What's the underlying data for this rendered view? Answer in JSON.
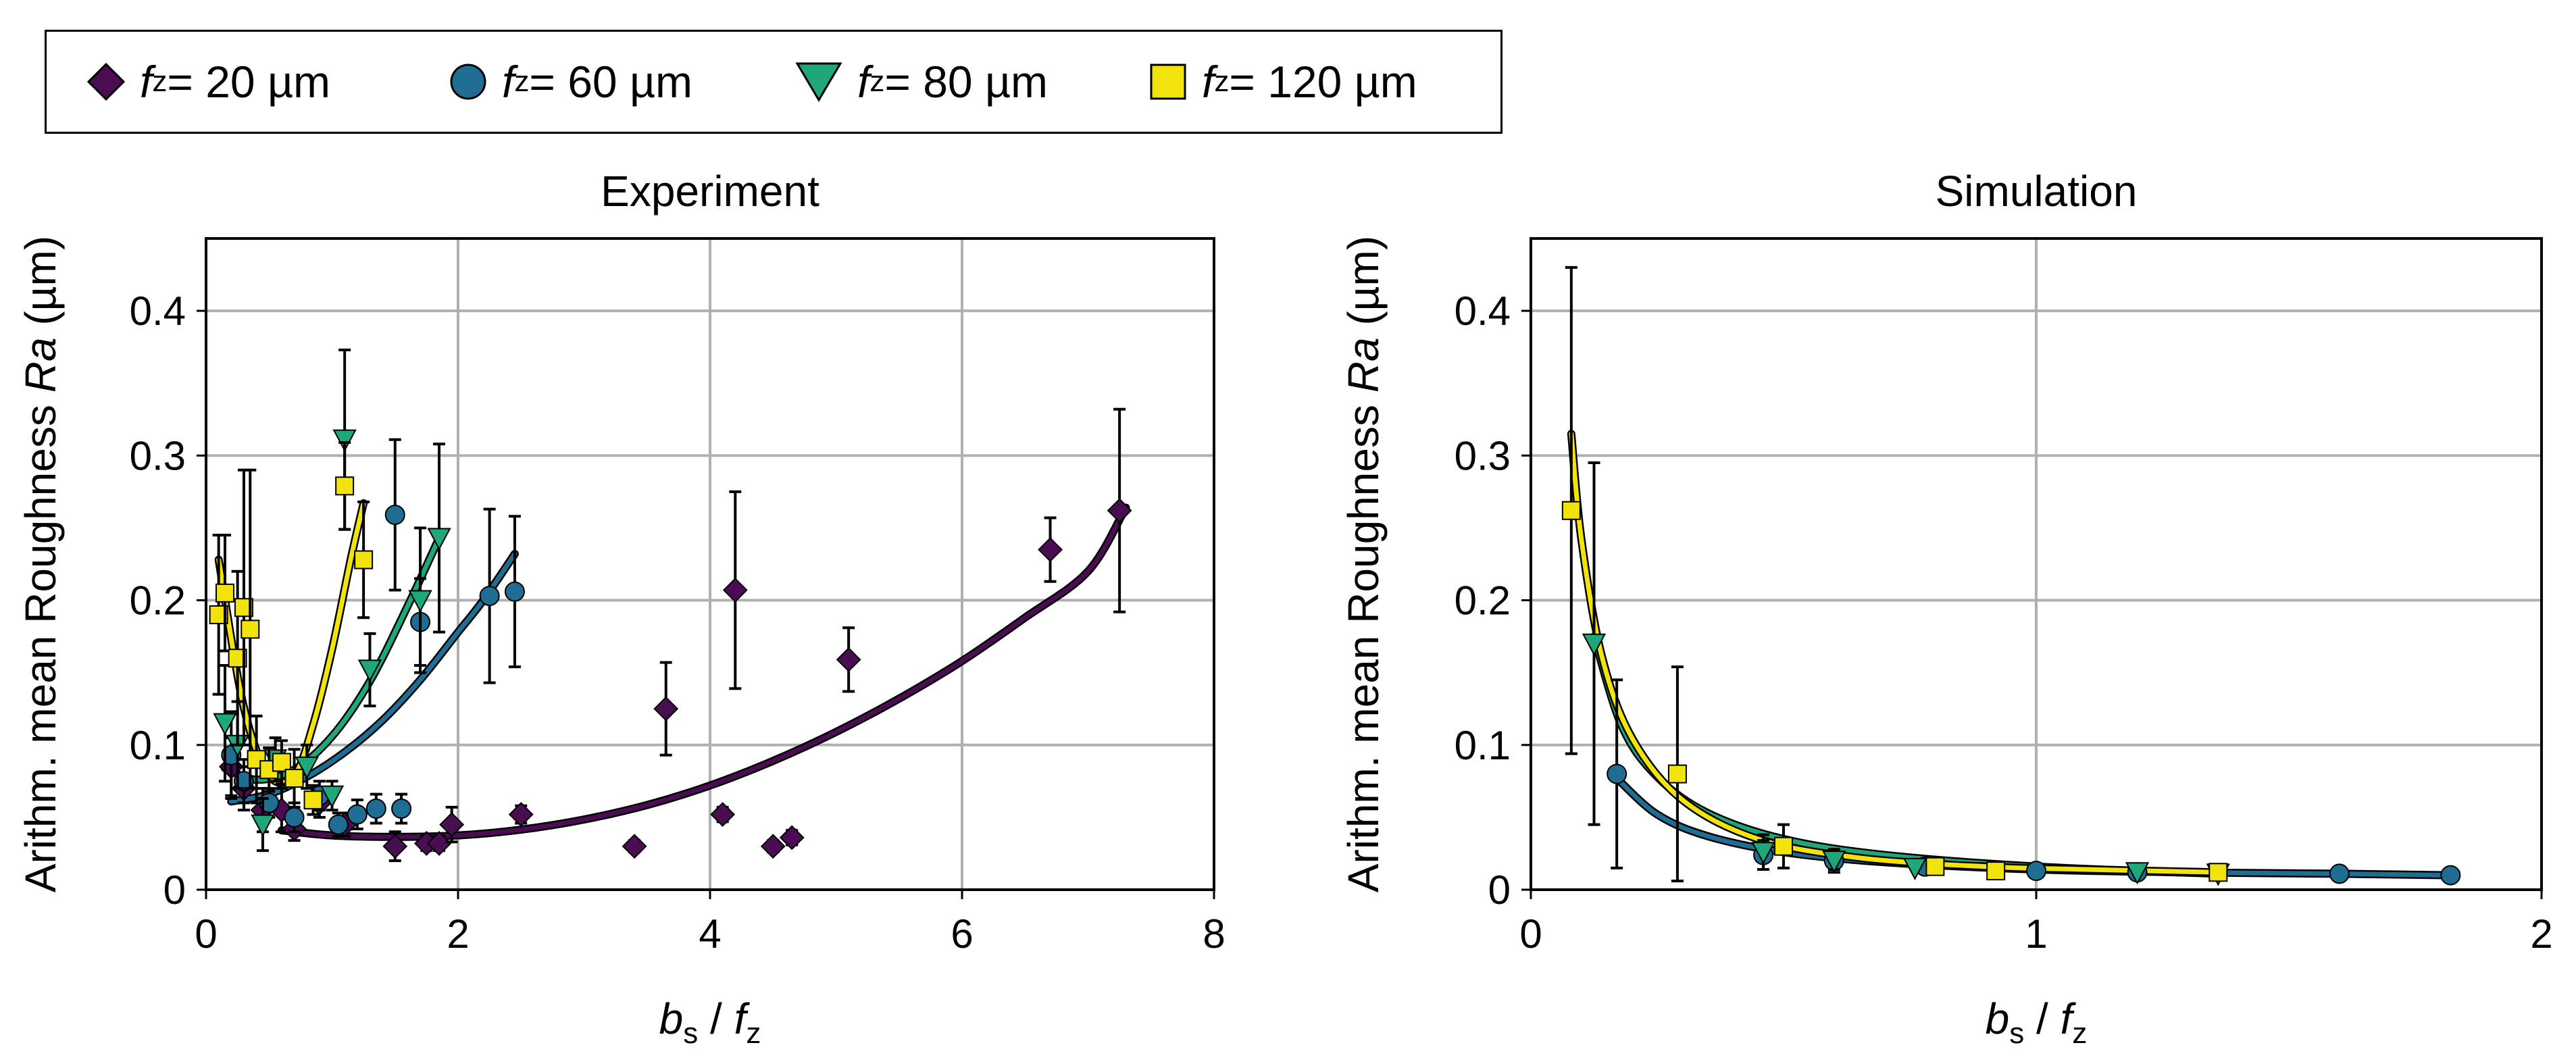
{
  "legend": {
    "items": [
      {
        "symbol": "f",
        "sub": "z",
        "text": " = 20 µm",
        "marker": "diamond",
        "color": "#4a0d52"
      },
      {
        "symbol": "f",
        "sub": "z",
        "text": " = 60 µm",
        "marker": "circle",
        "color": "#1f6d92"
      },
      {
        "symbol": "f",
        "sub": "z",
        "text": " = 80 µm",
        "marker": "triangle",
        "color": "#1fa67a"
      },
      {
        "symbol": "f",
        "sub": "z",
        "text": " = 120 µm",
        "marker": "square",
        "color": "#f2e30c"
      }
    ]
  },
  "chart_data": [
    {
      "type": "scatter",
      "title": "Experiment",
      "xlabel": "b_s / f_z",
      "ylabel": "Arithm. mean Roughness Ra (µm)",
      "xlim": [
        0,
        8
      ],
      "ylim": [
        0,
        0.45
      ],
      "xticks": [
        0,
        2,
        4,
        6,
        8
      ],
      "yticks": [
        0,
        0.1,
        0.2,
        0.3,
        0.4
      ],
      "xtick_labels": [
        "0",
        "2",
        "4",
        "6",
        "8"
      ],
      "ytick_labels": [
        "0",
        "0.1",
        "0.2",
        "0.3",
        "0.4"
      ],
      "grid": true,
      "series": [
        {
          "name": "f_z = 20 µm",
          "marker": "diamond",
          "color": "#4a0d52",
          "points": [
            {
              "x": 0.2,
              "y": 0.085,
              "err": 0.02
            },
            {
              "x": 0.3,
              "y": 0.07,
              "err": 0.015
            },
            {
              "x": 0.45,
              "y": 0.055,
              "err": 0.015
            },
            {
              "x": 0.6,
              "y": 0.055,
              "err": 0.015
            },
            {
              "x": 0.7,
              "y": 0.042,
              "err": 0.008
            },
            {
              "x": 0.9,
              "y": 0.06,
              "err": 0.01
            },
            {
              "x": 1.1,
              "y": 0.045,
              "err": 0.008
            },
            {
              "x": 1.5,
              "y": 0.03,
              "err": 0.01
            },
            {
              "x": 1.75,
              "y": 0.032,
              "err": 0.005
            },
            {
              "x": 1.85,
              "y": 0.032,
              "err": 0.005
            },
            {
              "x": 1.95,
              "y": 0.045,
              "err": 0.012
            },
            {
              "x": 2.5,
              "y": 0.052,
              "err": 0.006
            },
            {
              "x": 3.4,
              "y": 0.03,
              "err": 0.004
            },
            {
              "x": 3.65,
              "y": 0.125,
              "err": 0.032
            },
            {
              "x": 4.1,
              "y": 0.052,
              "err": 0.005
            },
            {
              "x": 4.2,
              "y": 0.207,
              "err": 0.068
            },
            {
              "x": 4.5,
              "y": 0.03,
              "err": 0.004
            },
            {
              "x": 4.65,
              "y": 0.036,
              "err": 0.005
            },
            {
              "x": 5.1,
              "y": 0.159,
              "err": 0.022
            },
            {
              "x": 6.7,
              "y": 0.235,
              "err": 0.022
            },
            {
              "x": 7.25,
              "y": 0.262,
              "err": 0.07
            }
          ],
          "fit": {
            "x": [
              0.6,
              1.0,
              1.5,
              2.0,
              2.5,
              3.0,
              3.5,
              4.0,
              4.5,
              5.0,
              5.5,
              6.0,
              6.5,
              7.0,
              7.3
            ],
            "y": [
              0.041,
              0.0375,
              0.0365,
              0.0375,
              0.0415,
              0.0485,
              0.0585,
              0.072,
              0.089,
              0.109,
              0.132,
              0.158,
              0.188,
              0.22,
              0.264
            ]
          }
        },
        {
          "name": "f_z = 60 µm",
          "marker": "circle",
          "color": "#1f6d92",
          "points": [
            {
              "x": 0.2,
              "y": 0.093,
              "err": 0.03
            },
            {
              "x": 0.3,
              "y": 0.075,
              "err": 0.015
            },
            {
              "x": 0.5,
              "y": 0.06,
              "err": 0.01
            },
            {
              "x": 0.7,
              "y": 0.05,
              "err": 0.01
            },
            {
              "x": 0.9,
              "y": 0.065,
              "err": 0.01
            },
            {
              "x": 1.05,
              "y": 0.045,
              "err": 0.008
            },
            {
              "x": 1.2,
              "y": 0.052,
              "err": 0.01
            },
            {
              "x": 1.35,
              "y": 0.056,
              "err": 0.01
            },
            {
              "x": 1.5,
              "y": 0.259,
              "err": 0.052
            },
            {
              "x": 1.55,
              "y": 0.056,
              "err": 0.01
            },
            {
              "x": 1.7,
              "y": 0.185,
              "err": 0.03
            },
            {
              "x": 2.25,
              "y": 0.203,
              "err": 0.06
            },
            {
              "x": 2.45,
              "y": 0.206,
              "err": 0.052
            }
          ],
          "fit": {
            "x": [
              0.2,
              0.5,
              0.8,
              1.1,
              1.4,
              1.7,
              2.0,
              2.2,
              2.45
            ],
            "y": [
              0.061,
              0.066,
              0.078,
              0.095,
              0.117,
              0.145,
              0.178,
              0.2,
              0.232
            ]
          }
        },
        {
          "name": "f_z = 80 µm",
          "marker": "triangle",
          "color": "#1fa67a",
          "points": [
            {
              "x": 0.15,
              "y": 0.115,
              "err": 0.04
            },
            {
              "x": 0.25,
              "y": 0.1,
              "err": 0.03
            },
            {
              "x": 0.45,
              "y": 0.045,
              "err": 0.018
            },
            {
              "x": 0.55,
              "y": 0.09,
              "err": 0.015
            },
            {
              "x": 0.8,
              "y": 0.085,
              "err": 0.015
            },
            {
              "x": 1.0,
              "y": 0.065,
              "err": 0.01
            },
            {
              "x": 1.1,
              "y": 0.311,
              "err": 0.062
            },
            {
              "x": 1.3,
              "y": 0.152,
              "err": 0.025
            },
            {
              "x": 1.7,
              "y": 0.2,
              "err": 0.05
            },
            {
              "x": 1.85,
              "y": 0.243,
              "err": 0.065
            }
          ],
          "fit": {
            "x": [
              0.15,
              0.4,
              0.7,
              1.0,
              1.3,
              1.6,
              1.85
            ],
            "y": [
              0.084,
              0.076,
              0.083,
              0.106,
              0.144,
              0.196,
              0.243
            ]
          }
        },
        {
          "name": "f_z = 120 µm",
          "marker": "square",
          "color": "#f2e30c",
          "points": [
            {
              "x": 0.1,
              "y": 0.19,
              "err": 0.055
            },
            {
              "x": 0.15,
              "y": 0.205,
              "err": 0.04
            },
            {
              "x": 0.25,
              "y": 0.16,
              "err": 0.06
            },
            {
              "x": 0.3,
              "y": 0.195,
              "err": 0.095
            },
            {
              "x": 0.35,
              "y": 0.18,
              "err": 0.11
            },
            {
              "x": 0.4,
              "y": 0.09,
              "err": 0.03
            },
            {
              "x": 0.5,
              "y": 0.083,
              "err": 0.015
            },
            {
              "x": 0.6,
              "y": 0.088,
              "err": 0.015
            },
            {
              "x": 0.7,
              "y": 0.077,
              "err": 0.02
            },
            {
              "x": 0.85,
              "y": 0.062,
              "err": 0.01
            },
            {
              "x": 1.1,
              "y": 0.279,
              "err": 0.03
            },
            {
              "x": 1.25,
              "y": 0.228,
              "err": 0.04
            }
          ],
          "fit": {
            "x": [
              0.1,
              0.3,
              0.5,
              0.7,
              0.85,
              1.0,
              1.15,
              1.25
            ],
            "y": [
              0.228,
              0.126,
              0.079,
              0.079,
              0.114,
              0.166,
              0.229,
              0.267
            ]
          }
        }
      ]
    },
    {
      "type": "scatter",
      "title": "Simulation",
      "xlabel": "b_s / f_z",
      "ylabel": "Arithm. mean Roughness Ra (µm)",
      "xlim": [
        0,
        2
      ],
      "ylim": [
        0,
        0.45
      ],
      "xticks": [
        0,
        1,
        2
      ],
      "yticks": [
        0,
        0.1,
        0.2,
        0.3,
        0.4
      ],
      "xtick_labels": [
        "0",
        "1",
        "2"
      ],
      "ytick_labels": [
        "0",
        "0.1",
        "0.2",
        "0.3",
        "0.4"
      ],
      "grid": true,
      "series": [
        {
          "name": "f_z = 60 µm",
          "marker": "circle",
          "color": "#1f6d92",
          "points": [
            {
              "x": 0.17,
              "y": 0.08,
              "err": 0.065
            },
            {
              "x": 0.46,
              "y": 0.024,
              "err": 0.01
            },
            {
              "x": 0.6,
              "y": 0.02,
              "err": 0.008
            },
            {
              "x": 0.78,
              "y": 0.016,
              "err": 0
            },
            {
              "x": 1.0,
              "y": 0.013,
              "err": 0
            },
            {
              "x": 1.2,
              "y": 0.012,
              "err": 0
            },
            {
              "x": 1.6,
              "y": 0.011,
              "err": 0
            },
            {
              "x": 1.82,
              "y": 0.01,
              "err": 0
            }
          ],
          "fit": {
            "x": [
              0.17,
              0.25,
              0.35,
              0.5,
              0.7,
              1.0,
              1.3,
              1.6,
              1.82
            ],
            "y": [
              0.077,
              0.052,
              0.037,
              0.026,
              0.019,
              0.014,
              0.012,
              0.011,
              0.01
            ]
          }
        },
        {
          "name": "f_z = 80 µm",
          "marker": "triangle",
          "color": "#1fa67a",
          "points": [
            {
              "x": 0.125,
              "y": 0.17,
              "err": 0.125
            },
            {
              "x": 0.46,
              "y": 0.026,
              "err": 0.012
            },
            {
              "x": 0.6,
              "y": 0.02,
              "err": 0.006
            },
            {
              "x": 0.76,
              "y": 0.015,
              "err": 0
            },
            {
              "x": 1.2,
              "y": 0.012,
              "err": 0
            },
            {
              "x": 1.36,
              "y": 0.011,
              "err": 0
            }
          ],
          "fit": {
            "x": [
              0.125,
              0.18,
              0.25,
              0.35,
              0.5,
              0.7,
              1.0,
              1.36
            ],
            "y": [
              0.175,
              0.113,
              0.078,
              0.053,
              0.035,
              0.024,
              0.016,
              0.011
            ]
          }
        },
        {
          "name": "f_z = 120 µm",
          "marker": "square",
          "color": "#f2e30c",
          "points": [
            {
              "x": 0.08,
              "y": 0.262,
              "err": 0.168
            },
            {
              "x": 0.29,
              "y": 0.08,
              "err": 0.074
            },
            {
              "x": 0.5,
              "y": 0.03,
              "err": 0.015
            },
            {
              "x": 0.8,
              "y": 0.016,
              "err": 0
            },
            {
              "x": 0.92,
              "y": 0.013,
              "err": 0
            },
            {
              "x": 1.36,
              "y": 0.012,
              "err": 0
            }
          ],
          "fit": {
            "x": [
              0.08,
              0.1,
              0.14,
              0.2,
              0.3,
              0.45,
              0.65,
              0.9,
              1.1,
              1.36
            ],
            "y": [
              0.315,
              0.242,
              0.162,
              0.105,
              0.062,
              0.035,
              0.022,
              0.016,
              0.014,
              0.012
            ]
          }
        }
      ]
    }
  ]
}
